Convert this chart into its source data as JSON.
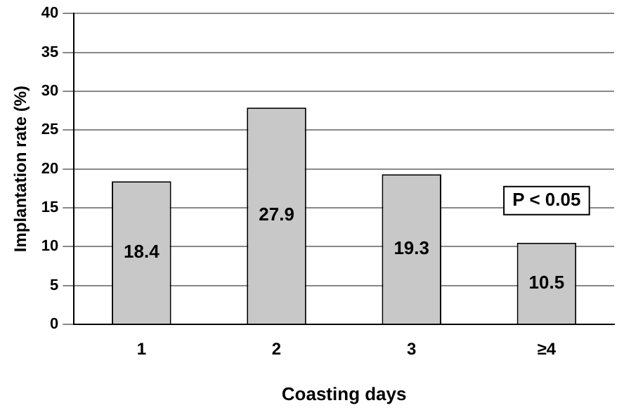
{
  "chart_data": {
    "type": "bar",
    "xlabel": "Coasting days",
    "ylabel": "Implantation rate (%)",
    "categories": [
      "1",
      "2",
      "3",
      "≥4"
    ],
    "values": [
      18.4,
      27.9,
      19.3,
      10.5
    ],
    "color": "#c8c8c8",
    "ylim": [
      0,
      40
    ],
    "yticks": [
      0,
      5,
      10,
      15,
      20,
      25,
      30,
      35,
      40
    ],
    "grid": "y",
    "data_labels": true,
    "annotations": [
      "P < 0.05"
    ]
  }
}
